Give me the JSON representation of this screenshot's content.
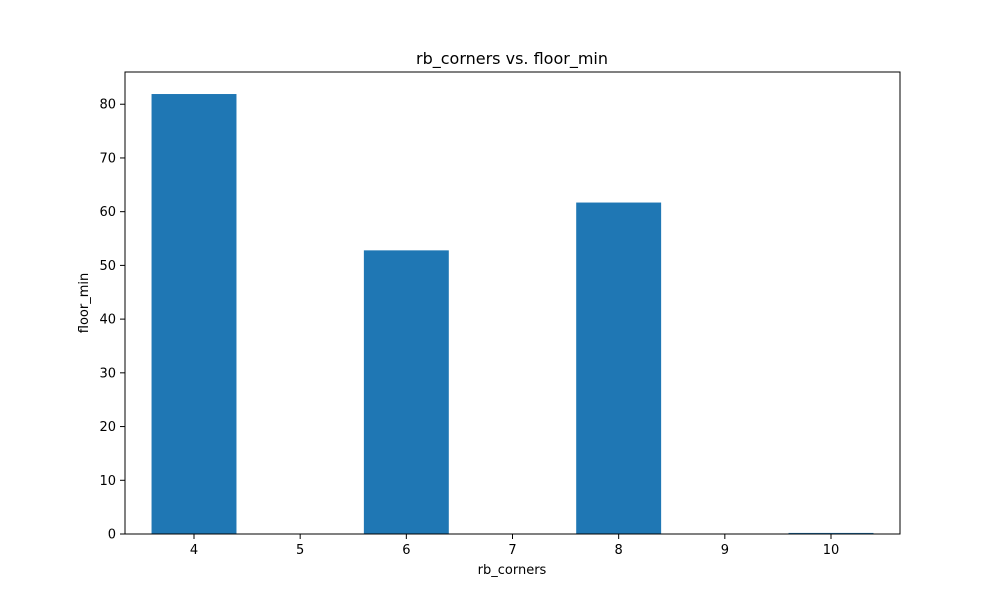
{
  "chart_data": {
    "type": "bar",
    "title": "rb_corners vs. floor_min",
    "xlabel": "rb_corners",
    "ylabel": "floor_min",
    "x": [
      4,
      5,
      6,
      7,
      8,
      9,
      10
    ],
    "values": [
      81.9,
      0,
      52.8,
      0,
      61.7,
      0,
      0.2
    ],
    "xlim": [
      3.35,
      10.65
    ],
    "ylim": [
      0,
      86
    ],
    "yticks": [
      0,
      10,
      20,
      30,
      40,
      50,
      60,
      70,
      80
    ],
    "xticks": [
      4,
      5,
      6,
      7,
      8,
      9,
      10
    ],
    "bar_width": 0.8,
    "bar_color": "#1f77b4",
    "grid": false,
    "legend": "none"
  }
}
